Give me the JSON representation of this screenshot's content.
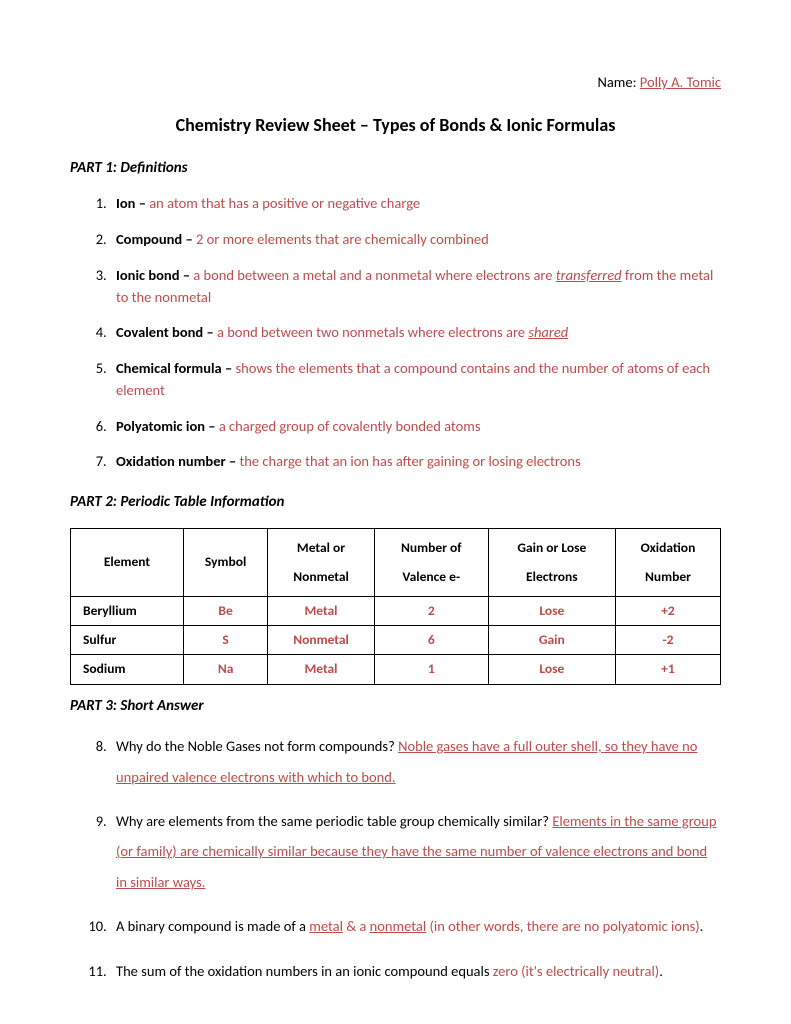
{
  "colors": {
    "answer_text": "#bd4b4b",
    "body_text": "#000000",
    "page_bg": "#ffffff",
    "table_border": "#000000"
  },
  "typography": {
    "body_fontsize_pt": 11,
    "title_fontsize_pt": 14,
    "font_family": "Calibri"
  },
  "header": {
    "name_label": "Name: ",
    "student_name": "Polly A. Tomic",
    "title": "Chemistry Review Sheet – Types of Bonds & Ionic Formulas"
  },
  "part1": {
    "heading": "PART 1: Definitions",
    "items": [
      {
        "term": "Ion – ",
        "answer": "an atom that has a positive or negative charge"
      },
      {
        "term": "Compound – ",
        "answer": "2 or more elements that are chemically combined"
      },
      {
        "term": "Ionic bond – ",
        "answer_pre": "a bond between a metal and a nonmetal where electrons are ",
        "keyword": "transferred",
        "answer_post": " from the metal to the nonmetal"
      },
      {
        "term": "Covalent bond – ",
        "answer_pre": "a bond between two nonmetals where electrons are ",
        "keyword": "shared"
      },
      {
        "term": "Chemical formula – ",
        "answer": "shows the elements that a compound contains and the number of atoms of each element"
      },
      {
        "term": "Polyatomic ion – ",
        "answer": "a charged group of covalently bonded atoms"
      },
      {
        "term": "Oxidation number – ",
        "answer": "the charge that an ion has after gaining or losing electrons"
      }
    ]
  },
  "part2": {
    "heading": "PART 2: Periodic Table Information",
    "columns": [
      "Element",
      "Symbol",
      "Metal or Nonmetal",
      "Number of Valence e-",
      "Gain or Lose Electrons",
      "Oxidation Number"
    ],
    "columns_line1": [
      "Element",
      "Symbol",
      "Metal or",
      "Number of",
      "Gain or Lose",
      "Oxidation"
    ],
    "columns_line2": [
      "",
      "",
      "Nonmetal",
      "Valence e-",
      "Electrons",
      "Number"
    ],
    "rows": [
      {
        "element": "Beryllium",
        "symbol": "Be",
        "metal": "Metal",
        "valence": "2",
        "gainlose": "Lose",
        "oxnum": "+2"
      },
      {
        "element": "Sulfur",
        "symbol": "S",
        "metal": "Nonmetal",
        "valence": "6",
        "gainlose": "Gain",
        "oxnum": "-2"
      },
      {
        "element": "Sodium",
        "symbol": "Na",
        "metal": "Metal",
        "valence": "1",
        "gainlose": "Lose",
        "oxnum": "+1"
      }
    ]
  },
  "part3": {
    "heading": "PART 3: Short Answer",
    "start": 8,
    "q8": {
      "q": "Why do the Noble Gases not form compounds? ",
      "a": "Noble gases have a full outer shell, so they have no unpaired valence electrons with which to bond."
    },
    "q9": {
      "q": "Why are elements from the same periodic table group chemically similar? ",
      "a": "Elements in the same group (or family) are chemically similar because they have the same number of valence electrons and bond in similar ways."
    },
    "q10": {
      "pre": "A binary compound is made of a ",
      "kw1": "metal",
      "mid": " & a ",
      "kw2": "nonmetal",
      "post": " (in other words, there are no polyatomic ions)",
      "end": "."
    },
    "q11": {
      "pre": "The sum of the oxidation numbers in an ionic compound equals ",
      "a": "zero (it's electrically neutral)",
      "end": "."
    }
  }
}
